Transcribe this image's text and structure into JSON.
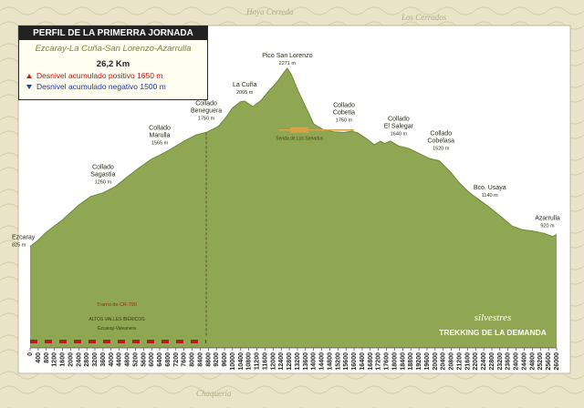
{
  "info": {
    "title": "PERFIL DE LA PRIMERRA JORNADA",
    "route": "Ezcaray-La Cuña-San Lorenzo-Azarrulla",
    "distance": "26,2 Km",
    "ascent": "Desnivel acumulado positivo 1650 m",
    "descent": "Desnivel acumulado negativo 1500 m"
  },
  "colors": {
    "terrain": "#8fa652",
    "frame": "#ffffff",
    "map_bg": "#e9e4c9",
    "dashed_line": "#5a5a2a",
    "plateau": "#d8a24a",
    "road_red": "#b01e1e"
  },
  "map_labels": [
    "Hoya Cerreda",
    "Los Cerrados",
    "Chaquería"
  ],
  "brand": {
    "line1": "silvestres",
    "line2": "TREKKING DE LA DEMANDA"
  },
  "road": {
    "label": "Tramo de CR-790",
    "sub1": "ALTOS VALLES IBÉRICOS",
    "sub2": "Ezcaray-Valvanera"
  },
  "plateau_label": "Senda de Los Senados",
  "chart_data": {
    "type": "area",
    "xlim": [
      0,
      26000
    ],
    "ylim": [
      0,
      2400
    ],
    "x_tick_labels": [
      "0",
      "400",
      "800",
      "1200",
      "1600",
      "2000",
      "2400",
      "2800",
      "3200",
      "3600",
      "4000",
      "4400",
      "4800",
      "5200",
      "5600",
      "6000",
      "6400",
      "6800",
      "7200",
      "7600",
      "8000",
      "8400",
      "8800",
      "9200",
      "9600",
      "10000",
      "10400",
      "10800",
      "11200",
      "11600",
      "12000",
      "12400",
      "12800",
      "13200",
      "13600",
      "14000",
      "14400",
      "14800",
      "15200",
      "15600",
      "16000",
      "16400",
      "16800",
      "17200",
      "17600",
      "18000",
      "18400",
      "18800",
      "19200",
      "19600",
      "20000",
      "20400",
      "20800",
      "21200",
      "21600",
      "22000",
      "22400",
      "22800",
      "23200",
      "23600",
      "24000",
      "24400",
      "24800",
      "25200",
      "25600",
      "26000"
    ],
    "x": [
      0,
      300,
      800,
      1600,
      2400,
      3000,
      3600,
      4200,
      4800,
      5400,
      6000,
      6400,
      7000,
      7600,
      8200,
      8700,
      9300,
      9700,
      10000,
      10400,
      10600,
      11000,
      11400,
      11800,
      12200,
      12500,
      12700,
      12900,
      13200,
      13600,
      14000,
      14500,
      15000,
      15500,
      15900,
      16200,
      16600,
      17000,
      17300,
      17500,
      17800,
      18200,
      18700,
      19200,
      19700,
      20200,
      20800,
      21200,
      21700,
      22200,
      22700,
      23300,
      23800,
      24300,
      24800,
      25400,
      25800,
      26000
    ],
    "y": [
      825,
      860,
      940,
      1040,
      1160,
      1230,
      1260,
      1310,
      1390,
      1465,
      1535,
      1565,
      1620,
      1680,
      1730,
      1750,
      1800,
      1880,
      1950,
      2000,
      2005,
      1960,
      2010,
      2090,
      2160,
      2230,
      2271,
      2220,
      2100,
      1960,
      1820,
      1770,
      1755,
      1750,
      1760,
      1745,
      1700,
      1650,
      1680,
      1660,
      1680,
      1640,
      1620,
      1580,
      1540,
      1520,
      1420,
      1340,
      1260,
      1200,
      1140,
      1060,
      990,
      960,
      950,
      930,
      905,
      920
    ],
    "waypoints": [
      {
        "name": "Ezcaray",
        "alt": "825 m",
        "x": 0,
        "y": 825
      },
      {
        "name": "Collado Sagastia",
        "alt": "1260 m",
        "x": 3600,
        "y": 1260
      },
      {
        "name": "Collado Marulla",
        "alt": "1565 m",
        "x": 6400,
        "y": 1565
      },
      {
        "name": "Collado Beneguera",
        "alt": "1750 m",
        "x": 8700,
        "y": 1750
      },
      {
        "name": "La Cuña",
        "alt": "2005 m",
        "x": 10600,
        "y": 2005
      },
      {
        "name": "Pico San Lorenzo",
        "alt": "2271 m",
        "x": 12700,
        "y": 2271
      },
      {
        "name": "Collado Cobetia",
        "alt": "1750 m",
        "x": 15500,
        "y": 1750
      },
      {
        "name": "Collado El Salegar",
        "alt": "1640 m",
        "x": 18200,
        "y": 1640
      },
      {
        "name": "Collado Cobelasa",
        "alt": "1520 m",
        "x": 20200,
        "y": 1520
      },
      {
        "name": "Bco. Usaya",
        "alt": "1140 m",
        "x": 22700,
        "y": 1140
      },
      {
        "name": "Azarrulla",
        "alt": "920 m",
        "x": 26000,
        "y": 920
      }
    ]
  }
}
